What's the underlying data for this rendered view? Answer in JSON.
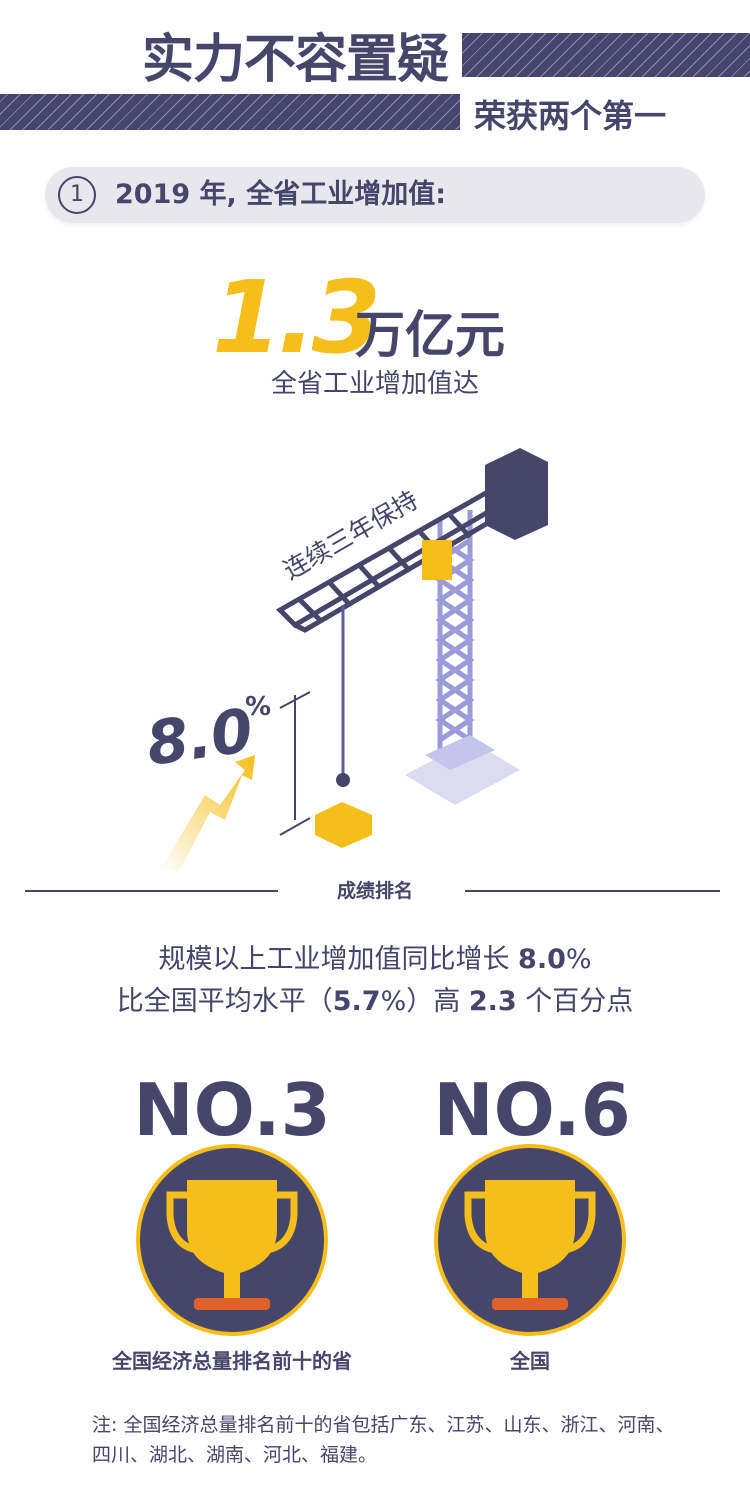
{
  "header": {
    "title": "实力不容置疑",
    "subtitle": "荣获两个第一"
  },
  "section": {
    "number": "1",
    "label": "2019 年, 全省工业增加值:"
  },
  "highlight": {
    "value": "1.3",
    "unit": "万亿元",
    "caption": "全省工业增加值达"
  },
  "crane": {
    "boom_text": "连续三年保持",
    "growth": "8.0",
    "growth_unit": "%"
  },
  "ranking": {
    "title": "成绩排名",
    "line1_prefix": "规模以上工业增加值同比增长 ",
    "line1_value": "8.0",
    "line1_suffix": "%",
    "line2_prefix": "比全国平均水平（",
    "line2_avg": "5.7",
    "line2_mid": "%）高 ",
    "line2_diff": "2.3",
    "line2_suffix": " 个百分点"
  },
  "awards": [
    {
      "rank": "NO.3",
      "caption": "全国经济总量排名前十的省"
    },
    {
      "rank": "NO.6",
      "caption": "全国"
    }
  ],
  "note": "注: 全国经济总量排名前十的省包括广东、江苏、山东、浙江、河南、四川、湖北、湖南、河北、福建。",
  "colors": {
    "navy": "#45466a",
    "yellow": "#f5be1a",
    "light_purple": "#9a9bd8",
    "pill": "#e8e7ee"
  }
}
